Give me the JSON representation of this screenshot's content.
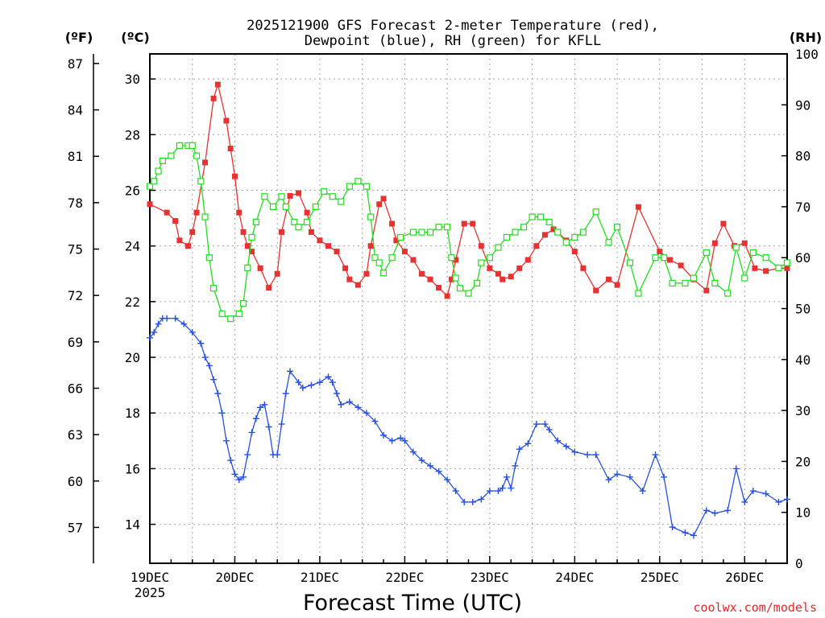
{
  "chart_data": {
    "type": "line",
    "title_line1": "2025121900 GFS Forecast 2-meter Temperature (red),",
    "title_line2": "Dewpoint (blue), RH (green) for KFLL",
    "xlabel": "Forecast Time (UTC)",
    "credit": "coolwx.com/models",
    "y_left_unit_f": "(ºF)",
    "y_left_unit_c": "(ºC)",
    "y_right_unit": "(RH)",
    "x_range_days": [
      0,
      7.5
    ],
    "x_ticks": [
      {
        "day": 0,
        "label": "19DEC",
        "sub": "2025"
      },
      {
        "day": 1,
        "label": "20DEC"
      },
      {
        "day": 2,
        "label": "21DEC"
      },
      {
        "day": 3,
        "label": "22DEC"
      },
      {
        "day": 4,
        "label": "23DEC"
      },
      {
        "day": 5,
        "label": "24DEC"
      },
      {
        "day": 6,
        "label": "25DEC"
      },
      {
        "day": 7,
        "label": "26DEC"
      }
    ],
    "c_axis": {
      "range": [
        12.6,
        30.9
      ],
      "ticks": [
        14,
        16,
        18,
        20,
        22,
        24,
        26,
        28,
        30
      ]
    },
    "f_ticks": [
      57,
      60,
      63,
      66,
      69,
      72,
      75,
      78,
      81,
      84,
      87
    ],
    "rh_axis": {
      "range": [
        0,
        100
      ],
      "ticks": [
        0,
        10,
        20,
        30,
        40,
        50,
        60,
        70,
        80,
        90,
        100
      ]
    },
    "series": [
      {
        "name": "2-meter Temperature",
        "color": "#e83232",
        "unit": "C",
        "points": [
          [
            0,
            25.5
          ],
          [
            0.2,
            25.2
          ],
          [
            0.3,
            24.9
          ],
          [
            0.35,
            24.2
          ],
          [
            0.45,
            24.0
          ],
          [
            0.5,
            24.5
          ],
          [
            0.55,
            25.2
          ],
          [
            0.65,
            27.0
          ],
          [
            0.75,
            29.3
          ],
          [
            0.8,
            29.8
          ],
          [
            0.9,
            28.5
          ],
          [
            0.95,
            27.5
          ],
          [
            1.0,
            26.5
          ],
          [
            1.05,
            25.2
          ],
          [
            1.1,
            24.5
          ],
          [
            1.15,
            24.0
          ],
          [
            1.2,
            23.8
          ],
          [
            1.3,
            23.2
          ],
          [
            1.4,
            22.5
          ],
          [
            1.5,
            23.0
          ],
          [
            1.55,
            24.5
          ],
          [
            1.65,
            25.8
          ],
          [
            1.75,
            25.9
          ],
          [
            1.85,
            25.2
          ],
          [
            1.9,
            24.5
          ],
          [
            2.0,
            24.2
          ],
          [
            2.1,
            24.0
          ],
          [
            2.2,
            23.8
          ],
          [
            2.3,
            23.2
          ],
          [
            2.35,
            22.8
          ],
          [
            2.45,
            22.6
          ],
          [
            2.55,
            23.0
          ],
          [
            2.6,
            24.0
          ],
          [
            2.7,
            25.5
          ],
          [
            2.75,
            25.7
          ],
          [
            2.85,
            24.8
          ],
          [
            2.9,
            24.2
          ],
          [
            3.0,
            23.8
          ],
          [
            3.1,
            23.5
          ],
          [
            3.2,
            23.0
          ],
          [
            3.3,
            22.8
          ],
          [
            3.4,
            22.5
          ],
          [
            3.5,
            22.2
          ],
          [
            3.55,
            22.8
          ],
          [
            3.6,
            23.5
          ],
          [
            3.7,
            24.8
          ],
          [
            3.8,
            24.8
          ],
          [
            3.9,
            24.0
          ],
          [
            4.0,
            23.2
          ],
          [
            4.1,
            23.0
          ],
          [
            4.15,
            22.8
          ],
          [
            4.25,
            22.9
          ],
          [
            4.35,
            23.2
          ],
          [
            4.45,
            23.5
          ],
          [
            4.55,
            24.0
          ],
          [
            4.65,
            24.4
          ],
          [
            4.75,
            24.6
          ],
          [
            4.8,
            24.5
          ],
          [
            4.9,
            24.2
          ],
          [
            5.0,
            23.8
          ],
          [
            5.1,
            23.2
          ],
          [
            5.25,
            22.4
          ],
          [
            5.4,
            22.8
          ],
          [
            5.5,
            22.6
          ],
          [
            5.75,
            25.4
          ],
          [
            6.0,
            23.8
          ],
          [
            6.12,
            23.5
          ],
          [
            6.25,
            23.3
          ],
          [
            6.4,
            22.8
          ],
          [
            6.55,
            22.4
          ],
          [
            6.65,
            24.1
          ],
          [
            6.75,
            24.8
          ],
          [
            6.88,
            24.0
          ],
          [
            7.0,
            24.1
          ],
          [
            7.12,
            23.2
          ],
          [
            7.25,
            23.1
          ],
          [
            7.4,
            23.2
          ],
          [
            7.5,
            23.2
          ]
        ]
      },
      {
        "name": "Dewpoint",
        "color": "#2850e0",
        "unit": "C",
        "points": [
          [
            0,
            20.7
          ],
          [
            0.05,
            20.9
          ],
          [
            0.1,
            21.2
          ],
          [
            0.15,
            21.4
          ],
          [
            0.2,
            21.4
          ],
          [
            0.3,
            21.4
          ],
          [
            0.4,
            21.2
          ],
          [
            0.5,
            20.9
          ],
          [
            0.6,
            20.5
          ],
          [
            0.65,
            20.0
          ],
          [
            0.7,
            19.7
          ],
          [
            0.75,
            19.2
          ],
          [
            0.8,
            18.7
          ],
          [
            0.85,
            18.0
          ],
          [
            0.9,
            17.0
          ],
          [
            0.95,
            16.3
          ],
          [
            1.0,
            15.8
          ],
          [
            1.05,
            15.6
          ],
          [
            1.1,
            15.7
          ],
          [
            1.15,
            16.5
          ],
          [
            1.2,
            17.3
          ],
          [
            1.25,
            17.8
          ],
          [
            1.3,
            18.2
          ],
          [
            1.35,
            18.3
          ],
          [
            1.4,
            17.5
          ],
          [
            1.45,
            16.5
          ],
          [
            1.5,
            16.5
          ],
          [
            1.55,
            17.6
          ],
          [
            1.6,
            18.7
          ],
          [
            1.65,
            19.5
          ],
          [
            1.75,
            19.1
          ],
          [
            1.8,
            18.9
          ],
          [
            1.9,
            19.0
          ],
          [
            2.0,
            19.1
          ],
          [
            2.1,
            19.3
          ],
          [
            2.15,
            19.1
          ],
          [
            2.2,
            18.7
          ],
          [
            2.25,
            18.3
          ],
          [
            2.35,
            18.4
          ],
          [
            2.45,
            18.2
          ],
          [
            2.55,
            18.0
          ],
          [
            2.65,
            17.7
          ],
          [
            2.75,
            17.2
          ],
          [
            2.85,
            17.0
          ],
          [
            2.95,
            17.1
          ],
          [
            3.0,
            17.0
          ],
          [
            3.1,
            16.6
          ],
          [
            3.2,
            16.3
          ],
          [
            3.3,
            16.1
          ],
          [
            3.4,
            15.9
          ],
          [
            3.5,
            15.6
          ],
          [
            3.6,
            15.2
          ],
          [
            3.7,
            14.8
          ],
          [
            3.8,
            14.8
          ],
          [
            3.9,
            14.9
          ],
          [
            4.0,
            15.2
          ],
          [
            4.1,
            15.2
          ],
          [
            4.15,
            15.3
          ],
          [
            4.2,
            15.7
          ],
          [
            4.25,
            15.3
          ],
          [
            4.3,
            16.1
          ],
          [
            4.35,
            16.7
          ],
          [
            4.45,
            16.9
          ],
          [
            4.55,
            17.6
          ],
          [
            4.65,
            17.6
          ],
          [
            4.7,
            17.4
          ],
          [
            4.8,
            17.0
          ],
          [
            4.9,
            16.8
          ],
          [
            5.0,
            16.6
          ],
          [
            5.15,
            16.5
          ],
          [
            5.25,
            16.5
          ],
          [
            5.4,
            15.6
          ],
          [
            5.5,
            15.8
          ],
          [
            5.65,
            15.7
          ],
          [
            5.8,
            15.2
          ],
          [
            5.95,
            16.5
          ],
          [
            6.05,
            15.7
          ],
          [
            6.15,
            13.9
          ],
          [
            6.3,
            13.7
          ],
          [
            6.4,
            13.6
          ],
          [
            6.55,
            14.5
          ],
          [
            6.65,
            14.4
          ],
          [
            6.8,
            14.5
          ],
          [
            6.9,
            16.0
          ],
          [
            7.0,
            14.8
          ],
          [
            7.1,
            15.2
          ],
          [
            7.25,
            15.1
          ],
          [
            7.4,
            14.8
          ],
          [
            7.5,
            14.9
          ]
        ]
      },
      {
        "name": "Relative Humidity",
        "color": "#22dd22",
        "unit": "RH",
        "points": [
          [
            0,
            74
          ],
          [
            0.05,
            75
          ],
          [
            0.1,
            77
          ],
          [
            0.15,
            79
          ],
          [
            0.25,
            80
          ],
          [
            0.35,
            82
          ],
          [
            0.45,
            82
          ],
          [
            0.5,
            82
          ],
          [
            0.55,
            80
          ],
          [
            0.6,
            75
          ],
          [
            0.65,
            68
          ],
          [
            0.7,
            60
          ],
          [
            0.75,
            54
          ],
          [
            0.85,
            49
          ],
          [
            0.95,
            48
          ],
          [
            1.05,
            49
          ],
          [
            1.1,
            51
          ],
          [
            1.15,
            58
          ],
          [
            1.2,
            64
          ],
          [
            1.25,
            67
          ],
          [
            1.35,
            72
          ],
          [
            1.45,
            70
          ],
          [
            1.55,
            72
          ],
          [
            1.6,
            70
          ],
          [
            1.7,
            67
          ],
          [
            1.75,
            66
          ],
          [
            1.85,
            67
          ],
          [
            1.95,
            70
          ],
          [
            2.05,
            73
          ],
          [
            2.15,
            72
          ],
          [
            2.25,
            71
          ],
          [
            2.35,
            74
          ],
          [
            2.45,
            75
          ],
          [
            2.55,
            74
          ],
          [
            2.6,
            68
          ],
          [
            2.65,
            60
          ],
          [
            2.7,
            59
          ],
          [
            2.75,
            57
          ],
          [
            2.85,
            60
          ],
          [
            2.95,
            64
          ],
          [
            3.1,
            65
          ],
          [
            3.2,
            65
          ],
          [
            3.3,
            65
          ],
          [
            3.4,
            66
          ],
          [
            3.5,
            66
          ],
          [
            3.55,
            60
          ],
          [
            3.6,
            56
          ],
          [
            3.65,
            54
          ],
          [
            3.75,
            53
          ],
          [
            3.85,
            55
          ],
          [
            3.9,
            59
          ],
          [
            4.0,
            60
          ],
          [
            4.1,
            62
          ],
          [
            4.2,
            64
          ],
          [
            4.3,
            65
          ],
          [
            4.4,
            66
          ],
          [
            4.5,
            68
          ],
          [
            4.6,
            68
          ],
          [
            4.7,
            67
          ],
          [
            4.8,
            65
          ],
          [
            4.9,
            63
          ],
          [
            5.0,
            64
          ],
          [
            5.1,
            65
          ],
          [
            5.25,
            69
          ],
          [
            5.4,
            63
          ],
          [
            5.5,
            66
          ],
          [
            5.65,
            59
          ],
          [
            5.75,
            53
          ],
          [
            5.95,
            60
          ],
          [
            6.05,
            60
          ],
          [
            6.15,
            55
          ],
          [
            6.3,
            55
          ],
          [
            6.4,
            56
          ],
          [
            6.55,
            61
          ],
          [
            6.65,
            55
          ],
          [
            6.8,
            53
          ],
          [
            6.9,
            62
          ],
          [
            7.0,
            56
          ],
          [
            7.1,
            61
          ],
          [
            7.25,
            60
          ],
          [
            7.4,
            58
          ],
          [
            7.5,
            59
          ]
        ]
      }
    ]
  }
}
